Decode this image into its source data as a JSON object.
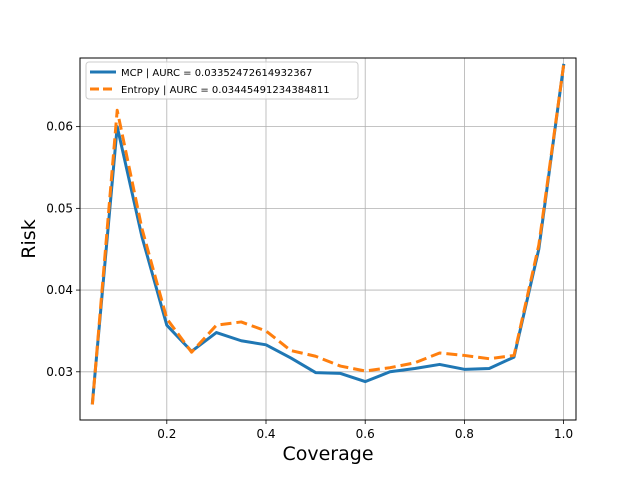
{
  "chart_data": {
    "type": "line",
    "title": "",
    "xlabel": "Coverage",
    "ylabel": "Risk",
    "xlim": [
      0.025,
      1.025
    ],
    "ylim": [
      0.0241,
      0.0684
    ],
    "xticks": [
      0.2,
      0.4,
      0.6,
      0.8,
      1.0
    ],
    "xtick_labels": [
      "0.2",
      "0.4",
      "0.6",
      "0.8",
      "1.0"
    ],
    "yticks": [
      0.03,
      0.04,
      0.05,
      0.06
    ],
    "ytick_labels": [
      "0.03",
      "0.04",
      "0.05",
      "0.06"
    ],
    "grid": true,
    "legend_position": "upper left",
    "x": [
      0.05,
      0.1,
      0.15,
      0.2,
      0.25,
      0.3,
      0.35,
      0.4,
      0.45,
      0.5,
      0.55,
      0.6,
      0.65,
      0.7,
      0.75,
      0.8,
      0.85,
      0.9,
      0.95,
      1.0
    ],
    "series": [
      {
        "name": "MCP | AURC = 0.03352472614932367",
        "color": "#1f77b4",
        "style": "solid",
        "values": [
          0.0262,
          0.06,
          0.0465,
          0.0357,
          0.0325,
          0.0348,
          0.0338,
          0.0333,
          0.0317,
          0.0299,
          0.0298,
          0.0288,
          0.03,
          0.0304,
          0.0309,
          0.0303,
          0.0304,
          0.0318,
          0.045,
          0.0675
        ]
      },
      {
        "name": "Entropy | AURC = 0.03445491234384811",
        "color": "#ff7f0e",
        "style": "dashed",
        "values": [
          0.026,
          0.062,
          0.0475,
          0.0365,
          0.0324,
          0.0357,
          0.0361,
          0.035,
          0.0326,
          0.0319,
          0.0307,
          0.0301,
          0.0305,
          0.0311,
          0.0323,
          0.032,
          0.0316,
          0.032,
          0.0455,
          0.0675
        ]
      }
    ]
  }
}
